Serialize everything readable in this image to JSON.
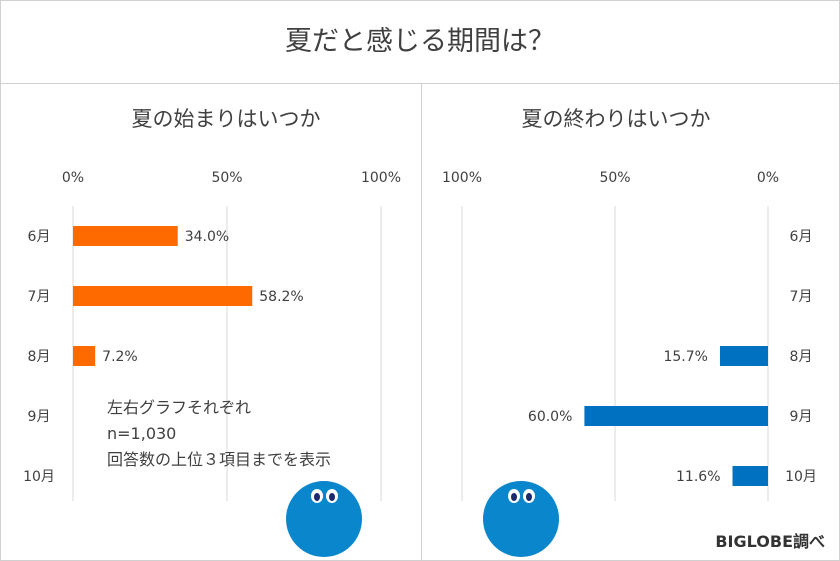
{
  "title": "夏だと感じる期間は？",
  "note": {
    "line1": "左右グラフそれぞれ",
    "line2": "n=1,030",
    "line3": "回答数の上位３項目までを表示"
  },
  "credit": "BIGLOBE調べ",
  "colors": {
    "start": "#ff6a00",
    "end": "#0070c0",
    "mascot": "#0a86cc",
    "grid": "#d9d9d9"
  },
  "chart_data": [
    {
      "type": "bar",
      "orientation": "horizontal",
      "title": "夏の始まりはいつか",
      "categories": [
        "6月",
        "7月",
        "8月",
        "9月",
        "10月"
      ],
      "values": [
        34.0,
        58.2,
        7.2,
        null,
        null
      ],
      "labels": [
        "34.0%",
        "58.2%",
        "7.2%",
        "",
        ""
      ],
      "xlim": [
        0,
        100
      ],
      "ticks": [
        "0%",
        "50%",
        "100%"
      ],
      "color": "#ff6a00",
      "direction": "left-to-right"
    },
    {
      "type": "bar",
      "orientation": "horizontal",
      "title": "夏の終わりはいつか",
      "categories": [
        "6月",
        "7月",
        "8月",
        "9月",
        "10月"
      ],
      "values": [
        null,
        null,
        15.7,
        60.0,
        11.6
      ],
      "labels": [
        "",
        "",
        "15.7%",
        "60.0%",
        "11.6%"
      ],
      "xlim": [
        0,
        100
      ],
      "ticks": [
        "100%",
        "50%",
        "0%"
      ],
      "color": "#0070c0",
      "direction": "right-to-left"
    }
  ]
}
